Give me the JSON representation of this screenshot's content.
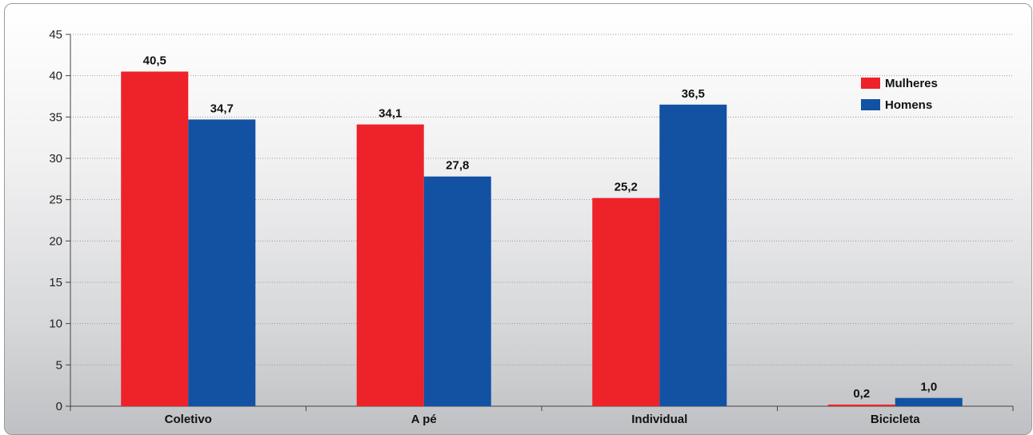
{
  "chart_data": {
    "type": "bar",
    "categories": [
      "Coletivo",
      "A pé",
      "Individual",
      "Bicicleta"
    ],
    "series": [
      {
        "name": "Mulheres",
        "color": "#ee2229",
        "values": [
          40.5,
          34.1,
          25.2,
          0.2
        ],
        "labels": [
          "40,5",
          "34,1",
          "25,2",
          "0,2"
        ]
      },
      {
        "name": "Homens",
        "color": "#1351a3",
        "values": [
          34.7,
          27.8,
          36.5,
          1.0
        ],
        "labels": [
          "34,7",
          "27,8",
          "36,5",
          "1,0"
        ]
      }
    ],
    "yticks": [
      0,
      5,
      10,
      15,
      20,
      25,
      30,
      35,
      40,
      45
    ],
    "ylim": [
      0,
      45
    ],
    "grid": true,
    "legend_position": "top-right"
  }
}
